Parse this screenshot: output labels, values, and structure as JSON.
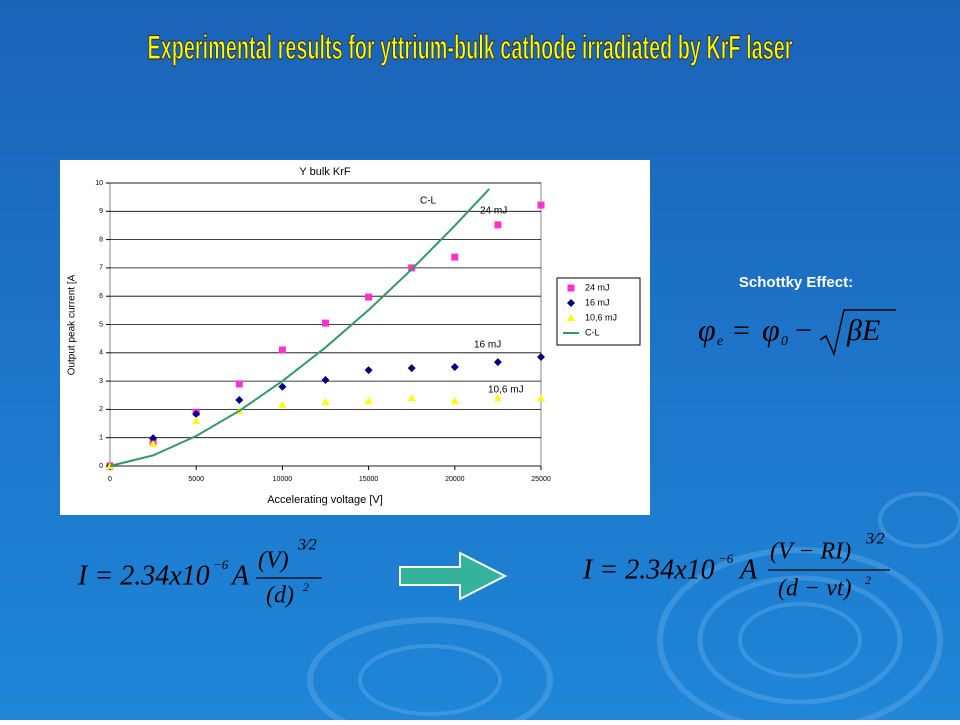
{
  "title": "Experimental results for yttrium-bulk cathode irradiated by KrF laser",
  "chart_data": {
    "type": "scatter",
    "title": "Y bulk KrF",
    "x_label": "Accelerating voltage [V]",
    "y_label": "Output peak current [A",
    "xlim": [
      0,
      25000
    ],
    "ylim": [
      0,
      10
    ],
    "xticks": [
      0,
      5000,
      10000,
      15000,
      20000,
      25000
    ],
    "yticks": [
      0,
      1,
      2,
      3,
      4,
      5,
      6,
      7,
      8,
      9,
      10
    ],
    "grid": true,
    "legend": "right",
    "series": [
      {
        "name": "24 mJ",
        "color": "#ff33cc",
        "marker": "square",
        "x": [
          0,
          2500,
          5000,
          7500,
          10000,
          12500,
          15000,
          17500,
          20000,
          22500,
          25000
        ],
        "values": [
          0,
          0.85,
          1.9,
          2.9,
          4.1,
          5.05,
          5.97,
          7.0,
          7.38,
          8.52,
          9.22
        ]
      },
      {
        "name": "16 mJ",
        "color": "#000080",
        "marker": "diamond",
        "x": [
          0,
          2500,
          5000,
          7500,
          10000,
          12500,
          15000,
          17500,
          20000,
          22500,
          25000
        ],
        "values": [
          0,
          0.98,
          1.84,
          2.33,
          2.8,
          3.04,
          3.39,
          3.46,
          3.5,
          3.67,
          3.85
        ]
      },
      {
        "name": "10,6 mJ",
        "color": "#ffff00",
        "marker": "triangle",
        "x": [
          0,
          2500,
          5000,
          7500,
          10000,
          12500,
          15000,
          17500,
          20000,
          22500,
          25000
        ],
        "values": [
          0,
          0.78,
          1.59,
          1.94,
          2.16,
          2.26,
          2.3,
          2.4,
          2.3,
          2.4,
          2.4
        ]
      },
      {
        "name": "C-L",
        "color": "#339966",
        "marker": "line",
        "x": [
          0,
          2500,
          5000,
          7500,
          10000,
          12500,
          15000,
          17500,
          20000,
          22000
        ],
        "values": [
          0,
          0.375,
          1.06,
          1.95,
          3.0,
          4.19,
          5.51,
          6.95,
          8.49,
          9.79
        ]
      }
    ],
    "annotations": [
      "C-L",
      "24 mJ",
      "16 mJ",
      "10,6 mJ"
    ]
  },
  "schottky": {
    "label": "Schottky Effect:",
    "phi": "φ",
    "sub_e": "e",
    "eq": "=",
    "sub_0": "0",
    "minus": "−",
    "be": "βE"
  },
  "formula_left": {
    "lhs": "I = 2.34x10",
    "exp": "−6",
    "a": "A",
    "num": "(V)",
    "pow": "3⁄2",
    "den": "(d)",
    "den_pow": "2"
  },
  "formula_right": {
    "lhs": "I = 2.34x10",
    "exp": "−6",
    "a": "A",
    "num": "(V − RI)",
    "pow": "3⁄2",
    "den": "(d − vt)",
    "den_pow": "2"
  }
}
